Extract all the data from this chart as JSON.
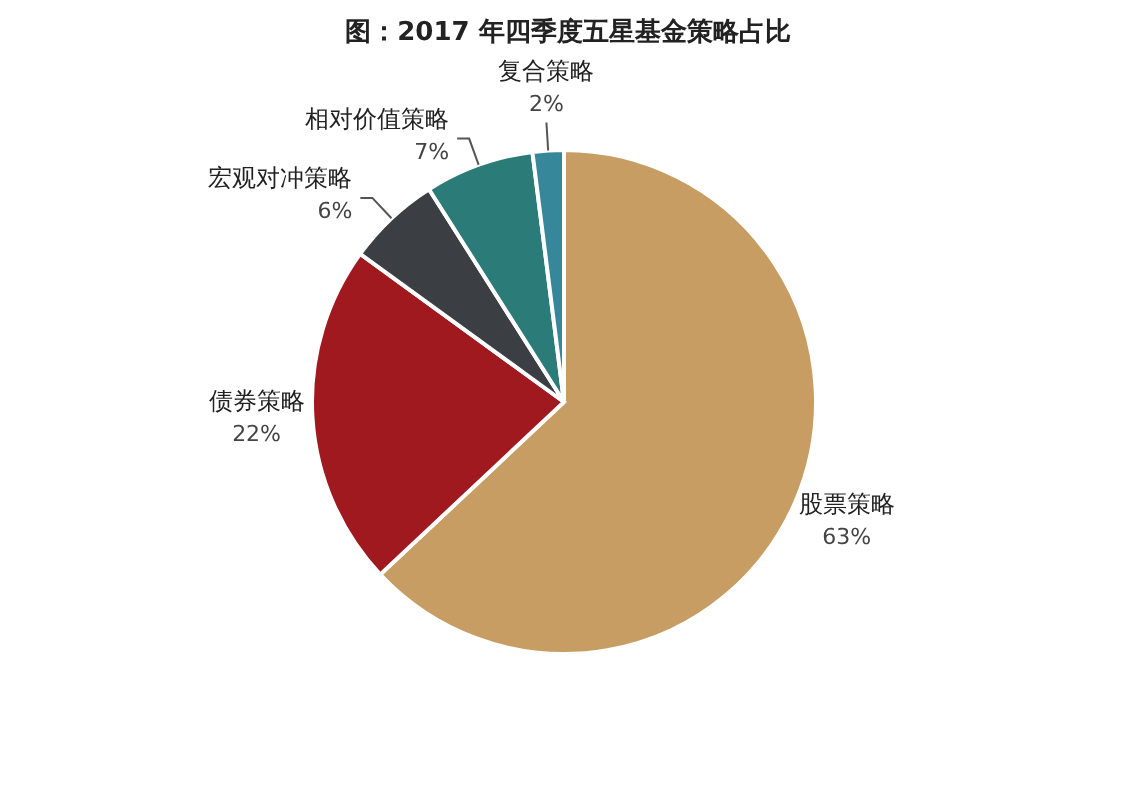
{
  "chart_data": {
    "type": "pie",
    "title": "图：2017 年四季度五星基金策略占比",
    "categories": [
      "股票策略",
      "债券策略",
      "宏观对冲策略",
      "相对价值策略",
      "复合策略"
    ],
    "values": [
      63,
      22,
      6,
      7,
      2
    ],
    "colors": [
      "#c89d63",
      "#a0191e",
      "#3b3f43",
      "#2b7b78",
      "#36879a"
    ],
    "value_labels": [
      "63%",
      "22%",
      "6%",
      "7%",
      "2%"
    ]
  }
}
